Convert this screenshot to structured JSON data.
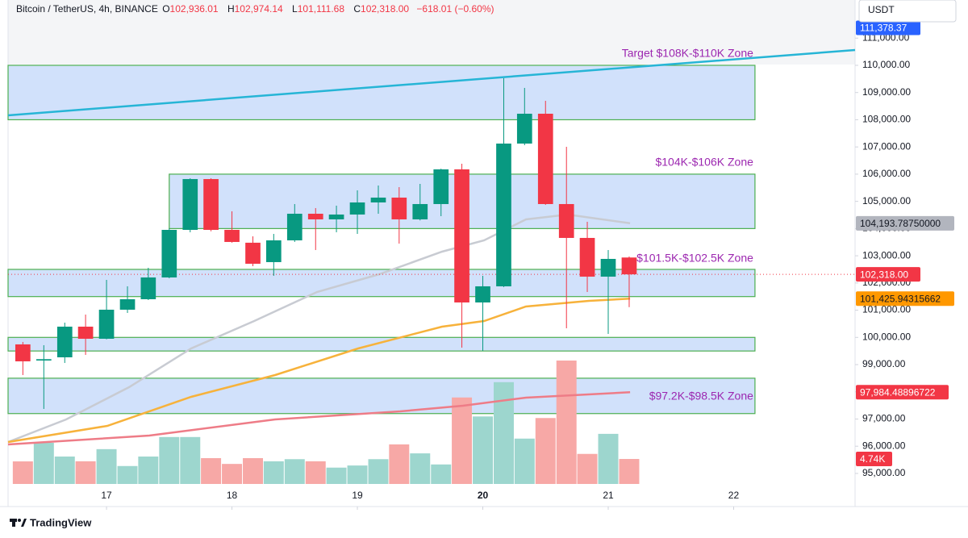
{
  "header": {
    "symbol": "Bitcoin / TetherUS, 4h, BINANCE",
    "ohlc": [
      {
        "key": "O",
        "value": "102,936.01"
      },
      {
        "key": "H",
        "value": "102,974.14"
      },
      {
        "key": "L",
        "value": "101,111.68"
      },
      {
        "key": "C",
        "value": "102,318.00"
      }
    ],
    "change": "−618.01 (−0.60%)"
  },
  "currency": "USDT",
  "footer": {
    "brand": "TradingView"
  },
  "chart_data": {
    "type": "candlestick",
    "x": [
      16.333,
      16.5,
      16.667,
      16.833,
      17,
      17.167,
      17.333,
      17.5,
      17.667,
      17.833,
      18,
      18.167,
      18.333,
      18.5,
      18.667,
      18.833,
      19,
      19.167,
      19.333,
      19.5,
      19.667,
      19.833,
      20,
      20.167,
      20.333,
      20.5,
      20.667,
      20.833,
      21,
      21.167
    ],
    "open": [
      99743,
      99150,
      99268,
      100395,
      99950,
      101018,
      101403,
      102203,
      103952,
      105820,
      103952,
      103480,
      102767,
      103567,
      104545,
      104338,
      104516,
      104960,
      105138,
      104338,
      104901,
      106176,
      101284,
      101877,
      107124,
      108221,
      104901,
      103656,
      102233,
      102936.01
    ],
    "high": [
      99832,
      99713,
      100543,
      100839,
      102114,
      101877,
      102559,
      104011,
      105850,
      105850,
      104634,
      103715,
      103804,
      104901,
      104753,
      104842,
      105405,
      105583,
      105523,
      105642,
      106200,
      106383,
      102263,
      109526,
      109170,
      108696,
      107006,
      104249,
      103211,
      102974.14
    ],
    "low": [
      98616,
      97371,
      99061,
      99357,
      99930,
      100899,
      101373,
      102173,
      103863,
      103900,
      103480,
      102618,
      102263,
      103508,
      103211,
      103864,
      103804,
      104545,
      103448,
      104300,
      104456,
      99624,
      99506,
      101850,
      107065,
      104870,
      100336,
      101670,
      100128,
      101111.68
    ],
    "close": [
      99120,
      99200,
      100395,
      99950,
      101018,
      101403,
      102203,
      103952,
      105820,
      103952,
      103508,
      102707,
      103567,
      104545,
      104338,
      104516,
      104960,
      105138,
      104338,
      104901,
      106176,
      101284,
      101877,
      107124,
      108221,
      104901,
      103656,
      102233,
      102885,
      102318
    ],
    "up_color": "#089981",
    "down_color": "#f23645",
    "xlim": [
      16.215,
      22.968
    ],
    "xticks": [
      17,
      18,
      19,
      20,
      21,
      22
    ],
    "ylim": [
      94613,
      112401
    ],
    "yticks": [
      {
        "value": 95000,
        "label": "95,000.00"
      },
      {
        "value": 96000,
        "label": "96,000.00"
      },
      {
        "value": 97000,
        "label": "97,000.00"
      },
      {
        "value": 98000,
        "label": "98,000.00"
      },
      {
        "value": 99000,
        "label": "99,000.00"
      },
      {
        "value": 100000,
        "label": "100,000.00"
      },
      {
        "value": 101000,
        "label": "101,000.00"
      },
      {
        "value": 102000,
        "label": "102,000.00"
      },
      {
        "value": 103000,
        "label": "103,000.00"
      },
      {
        "value": 104000,
        "label": "104,000.00"
      },
      {
        "value": 105000,
        "label": "105,000.00"
      },
      {
        "value": 106000,
        "label": "106,000.00"
      },
      {
        "value": 107000,
        "label": "107,000.00"
      },
      {
        "value": 108000,
        "label": "108,000.00"
      },
      {
        "value": 109000,
        "label": "109,000.00"
      },
      {
        "value": 110000,
        "label": "110,000.00"
      },
      {
        "value": 111000,
        "label": "111,000.00"
      }
    ],
    "volume": {
      "values": [
        4.28,
        7.8,
        5.2,
        4.3,
        6.6,
        3.4,
        5.2,
        8.9,
        8.9,
        4.9,
        3.8,
        4.9,
        4.3,
        4.7,
        4.3,
        3.1,
        3.5,
        4.7,
        7.5,
        5.8,
        3.7,
        16.4,
        12.8,
        19.3,
        8.6,
        12.5,
        23.4,
        5.7,
        9.5,
        4.74
      ],
      "up_color": "#9dd6ce",
      "down_color": "#f7a8a6",
      "last_label": "4.74K",
      "label_color": "#f23645"
    },
    "zones": [
      {
        "label": "Target $108K-$110K Zone",
        "low": 108000,
        "high": 110000,
        "x": [
          16.215,
          22.17
        ]
      },
      {
        "label": "$104K-$106K Zone",
        "low": 104000,
        "high": 106000,
        "x": [
          17.5,
          22.17
        ]
      },
      {
        "label": "$101.5K-$102.5K Zone",
        "low": 101500,
        "high": 102500,
        "x": [
          16.215,
          22.17
        ]
      },
      {
        "label": null,
        "low": 99500,
        "high": 100000,
        "x": [
          16.215,
          22.17
        ]
      },
      {
        "label": "$97.2K-$98.5K Zone",
        "low": 97200,
        "high": 98500,
        "x": [
          16.215,
          22.17
        ]
      }
    ],
    "zone_fill": "#d1e1fb",
    "zone_border": "#4caf50",
    "zone_label_color": "#9c27b0",
    "lines": [
      {
        "color": "#c8cbd2",
        "x": [
          16.215,
          16.678,
          17.18,
          17.675,
          18.177,
          18.678,
          19.174,
          19.675,
          20.01,
          20.344,
          20.678,
          21.174
        ],
        "values": [
          96156,
          96986,
          98172,
          99595,
          100603,
          101670,
          102322,
          103152,
          103567,
          104338,
          104516,
          104193.7875
        ],
        "last_label": "104,193.78750000",
        "label_color": "#b2b5be",
        "label_text": "#131722"
      },
      {
        "color": "#f7b23b",
        "x": [
          16.215,
          17.006,
          17.675,
          18.344,
          19.006,
          19.675,
          20.01,
          20.344,
          20.846,
          21.174
        ],
        "values": [
          96156,
          96749,
          97816,
          98616,
          99595,
          100395,
          100603,
          101136,
          101344,
          101425.94315662
        ],
        "last_label": "101,425.94315662",
        "label_color": "#ff9800",
        "label_text": "#131722"
      },
      {
        "color": "#ee7c87",
        "x": [
          16.215,
          17.341,
          18.344,
          19.341,
          19.842,
          20.344,
          21.174
        ],
        "values": [
          96067,
          96393,
          96986,
          97282,
          97490,
          97786,
          97984.48896722
        ],
        "last_label": "97,984.48896722",
        "label_color": "#f23645",
        "label_text": "#ffffff"
      },
      {
        "color": "#26b5d6",
        "x": [
          16.215,
          22.968
        ],
        "values": [
          108162,
          110563
        ]
      }
    ],
    "last_price": {
      "value": 102318,
      "label": "102,318.00",
      "color": "#f23645"
    },
    "price_markers": [
      {
        "value": 111378.37,
        "label": "111,378.37",
        "color": "#2962ff"
      }
    ]
  }
}
